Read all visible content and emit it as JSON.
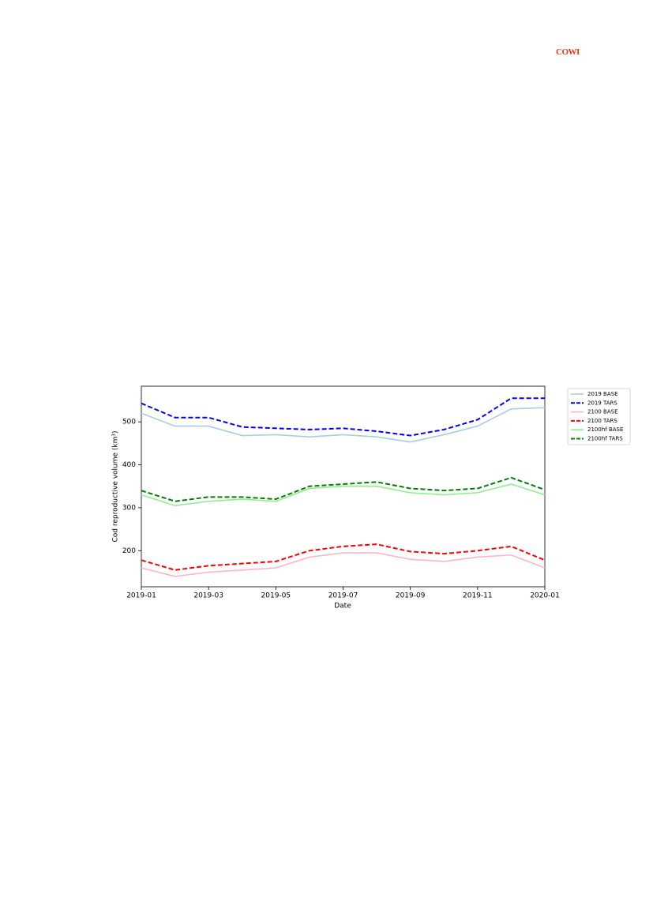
{
  "logo": "COWI",
  "chart_data": {
    "type": "line",
    "x_label": "Date",
    "y_label": "Cod reproductive volume (km³)",
    "x": [
      "2019-01",
      "2019-02",
      "2019-03",
      "2019-04",
      "2019-05",
      "2019-06",
      "2019-07",
      "2019-08",
      "2019-09",
      "2019-10",
      "2019-11",
      "2019-12",
      "2020-01"
    ],
    "xlim": [
      "2019-01",
      "2020-01"
    ],
    "xticks": [
      "2019-01",
      "2019-03",
      "2019-05",
      "2019-07",
      "2019-09",
      "2019-11",
      "2020-01"
    ],
    "ylim": [
      116,
      583
    ],
    "yticks": [
      200,
      300,
      400,
      500
    ],
    "legend": "outside-right",
    "series": [
      {
        "name": "2019 BASE",
        "color": "#a6cee3",
        "style": "solid",
        "values": [
          520,
          490,
          490,
          468,
          470,
          465,
          470,
          465,
          453,
          470,
          490,
          530,
          533
        ]
      },
      {
        "name": "2019 TARS",
        "color": "#0000ff",
        "style": "dashed",
        "values": [
          543,
          510,
          510,
          488,
          485,
          482,
          485,
          478,
          468,
          482,
          505,
          555,
          555
        ]
      },
      {
        "name": "2100 BASE",
        "color": "#ffb6c1",
        "style": "solid",
        "values": [
          160,
          140,
          150,
          155,
          160,
          185,
          195,
          195,
          180,
          175,
          185,
          190,
          160
        ]
      },
      {
        "name": "2100 TARS",
        "color": "#ff0000",
        "style": "dashed",
        "values": [
          178,
          155,
          165,
          170,
          175,
          200,
          210,
          215,
          198,
          193,
          200,
          210,
          178
        ]
      },
      {
        "name": "2100hf BASE",
        "color": "#90ee90",
        "style": "solid",
        "values": [
          330,
          305,
          315,
          320,
          315,
          345,
          350,
          350,
          335,
          330,
          335,
          355,
          330
        ]
      },
      {
        "name": "2100hf TARS",
        "color": "#008000",
        "style": "dashed",
        "values": [
          340,
          315,
          325,
          325,
          320,
          350,
          355,
          360,
          345,
          340,
          345,
          370,
          342
        ]
      }
    ]
  }
}
